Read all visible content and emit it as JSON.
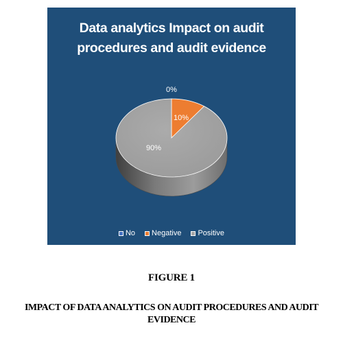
{
  "figure": {
    "label": "FIGURE 1",
    "caption_line1": "IMPACT OF DATA ANALYTICS ON AUDIT PROCEDURES AND AUDIT",
    "caption_line2": "EVIDENCE"
  },
  "chart_data": {
    "type": "pie",
    "title_line1": "Data analytics Impact on audit",
    "title_line2": "procedures and audit evidence",
    "categories": [
      "No",
      "Negative",
      "Positive"
    ],
    "values": [
      0,
      10,
      90
    ],
    "data_labels": [
      "0%",
      "10%",
      "90%"
    ],
    "colors": [
      "#4472c4",
      "#ed7d31",
      "#a5a5a5"
    ],
    "legend_position": "bottom",
    "three_d": true
  }
}
